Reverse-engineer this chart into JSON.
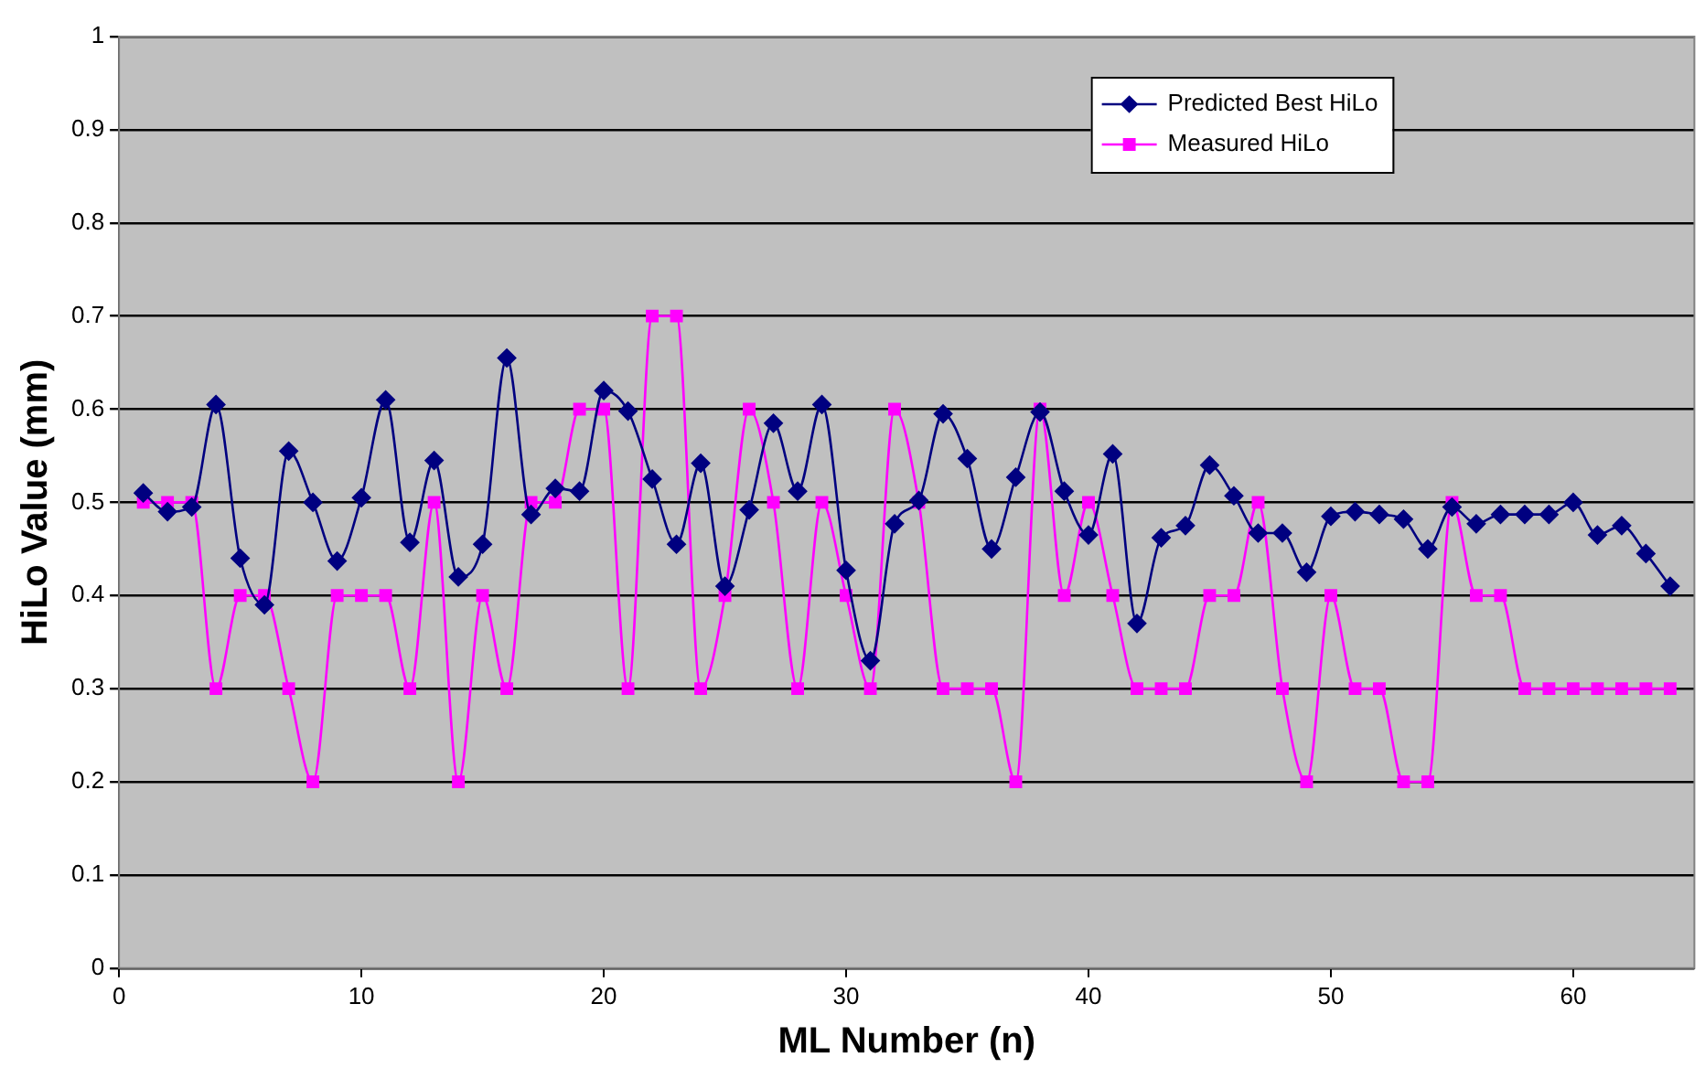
{
  "chart_data": {
    "type": "line",
    "xlabel": "ML Number (n)",
    "ylabel": "HiLo Value (mm)",
    "x": [
      1,
      2,
      3,
      4,
      5,
      6,
      7,
      8,
      9,
      10,
      11,
      12,
      13,
      14,
      15,
      16,
      17,
      18,
      19,
      20,
      21,
      22,
      23,
      24,
      25,
      26,
      27,
      28,
      29,
      30,
      31,
      32,
      33,
      34,
      35,
      36,
      37,
      38,
      39,
      40,
      41,
      42,
      43,
      44,
      45,
      46,
      47,
      48,
      49,
      50,
      51,
      52,
      53,
      54,
      55,
      56,
      57,
      58,
      59,
      60,
      61,
      62,
      63,
      64
    ],
    "series": [
      {
        "name": "Predicted Best HiLo",
        "color": "#000080",
        "marker": "diamond",
        "values": [
          0.51,
          0.49,
          0.495,
          0.605,
          0.44,
          0.39,
          0.555,
          0.5,
          0.437,
          0.505,
          0.61,
          0.457,
          0.545,
          0.42,
          0.455,
          0.655,
          0.487,
          0.515,
          0.512,
          0.62,
          0.598,
          0.525,
          0.455,
          0.542,
          0.41,
          0.492,
          0.585,
          0.512,
          0.605,
          0.427,
          0.33,
          0.477,
          0.502,
          0.595,
          0.547,
          0.45,
          0.527,
          0.597,
          0.512,
          0.465,
          0.552,
          0.37,
          0.462,
          0.475,
          0.54,
          0.507,
          0.467,
          0.467,
          0.425,
          0.485,
          0.49,
          0.487,
          0.482,
          0.45,
          0.495,
          0.477,
          0.487,
          0.487,
          0.487,
          0.5,
          0.465,
          0.475,
          0.445,
          0.41
        ]
      },
      {
        "name": "Measured HiLo",
        "color": "#ff00ff",
        "marker": "square",
        "values": [
          0.5,
          0.5,
          0.5,
          0.3,
          0.4,
          0.4,
          0.3,
          0.2,
          0.4,
          0.4,
          0.4,
          0.3,
          0.5,
          0.2,
          0.4,
          0.3,
          0.5,
          0.5,
          0.6,
          0.6,
          0.3,
          0.7,
          0.7,
          0.3,
          0.4,
          0.6,
          0.5,
          0.3,
          0.5,
          0.4,
          0.3,
          0.6,
          0.5,
          0.3,
          0.3,
          0.3,
          0.2,
          0.6,
          0.4,
          0.5,
          0.4,
          0.3,
          0.3,
          0.3,
          0.4,
          0.4,
          0.5,
          0.3,
          0.2,
          0.4,
          0.3,
          0.3,
          0.2,
          0.2,
          0.5,
          0.4,
          0.4,
          0.3,
          0.3,
          0.3,
          0.3,
          0.3,
          0.3,
          0.3
        ]
      }
    ],
    "xlim": [
      0,
      65
    ],
    "xticks": [
      0,
      10,
      20,
      30,
      40,
      50,
      60
    ],
    "ylim": [
      0,
      1
    ],
    "yticks": [
      0,
      0.1,
      0.2,
      0.3,
      0.4,
      0.5,
      0.6,
      0.7,
      0.8,
      0.9,
      1
    ],
    "grid": "y",
    "legend": "top right",
    "line_style": "solid"
  }
}
